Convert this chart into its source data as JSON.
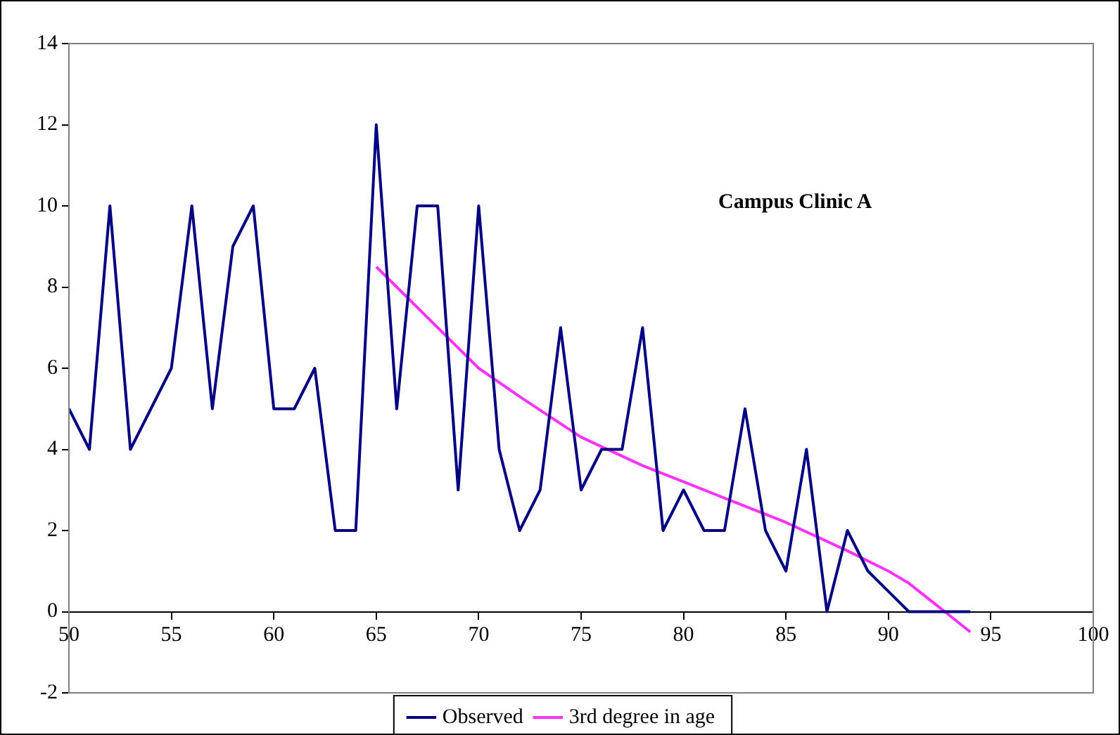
{
  "chart_data": {
    "type": "line",
    "annotations": [
      "Campus Clinic A"
    ],
    "xlim": [
      50,
      100
    ],
    "xticks": [
      50,
      55,
      60,
      65,
      70,
      75,
      80,
      85,
      90,
      95,
      100
    ],
    "ylim": [
      -2,
      14
    ],
    "yticks": [
      -2,
      0,
      2,
      4,
      6,
      8,
      10,
      12,
      14
    ],
    "grid": false,
    "legend": "bottom",
    "marker": "none",
    "line_style": "solid",
    "series": [
      {
        "name": "Observed",
        "color": "#000080",
        "x": [
          50,
          51,
          52,
          53,
          54,
          55,
          56,
          57,
          58,
          59,
          60,
          61,
          62,
          63,
          64,
          65,
          66,
          67,
          68,
          69,
          70,
          71,
          72,
          73,
          74,
          75,
          76,
          77,
          78,
          79,
          80,
          81,
          82,
          83,
          84,
          85,
          86,
          87,
          88,
          89,
          90,
          91,
          92,
          93,
          94
        ],
        "values": [
          5,
          4,
          10,
          4,
          5,
          6,
          10,
          5,
          9,
          10,
          5,
          5,
          6,
          2,
          2,
          12,
          5,
          10,
          10,
          3,
          10,
          4,
          2,
          3,
          7,
          3,
          4,
          4,
          7,
          2,
          3,
          2,
          2,
          5,
          2,
          1,
          4,
          0,
          2,
          1,
          0.5,
          0,
          0,
          0,
          0
        ]
      },
      {
        "name": "3rd degree in age",
        "color": "#ff33ff",
        "x": [
          65,
          66,
          67,
          68,
          70,
          72,
          75,
          78,
          80,
          82,
          85,
          88,
          90,
          91,
          92,
          93,
          94
        ],
        "values": [
          8.5,
          8,
          7.5,
          7,
          6,
          5.3,
          4.3,
          3.6,
          3.2,
          2.8,
          2.2,
          1.5,
          1,
          0.7,
          0.3,
          -0.1,
          -0.5
        ]
      }
    ]
  }
}
